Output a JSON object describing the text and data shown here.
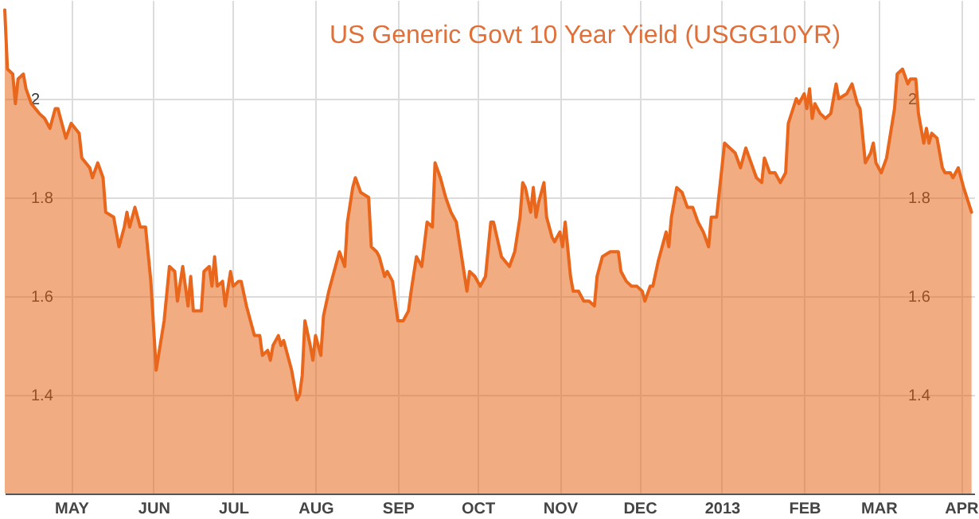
{
  "chart_data": {
    "type": "area",
    "title": "US Generic Govt 10 Year Yield (USGG10YR)",
    "x": [
      "2012-04-06",
      "2012-04-07",
      "2012-04-09",
      "2012-04-10",
      "2012-04-11",
      "2012-04-13",
      "2012-04-14",
      "2012-04-16",
      "2012-04-19",
      "2012-04-21",
      "2012-04-23",
      "2012-04-25",
      "2012-04-26",
      "2012-04-28",
      "2012-04-29",
      "2012-05-01",
      "2012-05-04",
      "2012-05-05",
      "2012-05-08",
      "2012-05-09",
      "2012-05-11",
      "2012-05-13",
      "2012-05-14",
      "2012-05-17",
      "2012-05-19",
      "2012-05-21",
      "2012-05-22",
      "2012-05-23",
      "2012-05-25",
      "2012-05-27",
      "2012-05-29",
      "2012-05-31",
      "2012-06-02",
      "2012-06-05",
      "2012-06-07",
      "2012-06-09",
      "2012-06-10",
      "2012-06-12",
      "2012-06-14",
      "2012-06-15",
      "2012-06-16",
      "2012-06-19",
      "2012-06-20",
      "2012-06-22",
      "2012-06-23",
      "2012-06-24",
      "2012-06-25",
      "2012-06-27",
      "2012-06-28",
      "2012-06-30",
      "2012-07-01",
      "2012-07-03",
      "2012-07-04",
      "2012-07-06",
      "2012-07-09",
      "2012-07-11",
      "2012-07-12",
      "2012-07-14",
      "2012-07-15",
      "2012-07-16",
      "2012-07-18",
      "2012-07-19",
      "2012-07-20",
      "2012-07-23",
      "2012-07-25",
      "2012-07-26",
      "2012-07-27",
      "2012-07-28",
      "2012-07-30",
      "2012-07-31",
      "2012-08-01",
      "2012-08-03",
      "2012-08-04",
      "2012-08-06",
      "2012-08-08",
      "2012-08-10",
      "2012-08-12",
      "2012-08-13",
      "2012-08-15",
      "2012-08-16",
      "2012-08-18",
      "2012-08-21",
      "2012-08-22",
      "2012-08-24",
      "2012-08-25",
      "2012-08-27",
      "2012-08-28",
      "2012-08-30",
      "2012-09-01",
      "2012-09-03",
      "2012-09-05",
      "2012-09-06",
      "2012-09-08",
      "2012-09-10",
      "2012-09-12",
      "2012-09-14",
      "2012-09-15",
      "2012-09-17",
      "2012-09-19",
      "2012-09-21",
      "2012-09-23",
      "2012-09-25",
      "2012-09-27",
      "2012-09-28",
      "2012-09-30",
      "2012-10-02",
      "2012-10-04",
      "2012-10-06",
      "2012-10-07",
      "2012-10-10",
      "2012-10-13",
      "2012-10-15",
      "2012-10-17",
      "2012-10-18",
      "2012-10-19",
      "2012-10-21",
      "2012-10-22",
      "2012-10-23",
      "2012-10-24",
      "2012-10-26",
      "2012-10-27",
      "2012-10-29",
      "2012-10-30",
      "2012-11-01",
      "2012-11-02",
      "2012-11-03",
      "2012-11-05",
      "2012-11-06",
      "2012-11-08",
      "2012-11-10",
      "2012-11-12",
      "2012-11-14",
      "2012-11-15",
      "2012-11-17",
      "2012-11-20",
      "2012-11-23",
      "2012-11-24",
      "2012-11-26",
      "2012-11-28",
      "2012-11-30",
      "2012-12-02",
      "2012-12-03",
      "2012-12-05",
      "2012-12-06",
      "2012-12-08",
      "2012-12-11",
      "2012-12-12",
      "2012-12-13",
      "2012-12-15",
      "2012-12-17",
      "2012-12-19",
      "2012-12-21",
      "2012-12-23",
      "2012-12-25",
      "2012-12-27",
      "2012-12-28",
      "2012-12-30",
      "2013-01-02",
      "2013-01-04",
      "2013-01-06",
      "2013-01-08",
      "2013-01-10",
      "2013-01-12",
      "2013-01-14",
      "2013-01-16",
      "2013-01-17",
      "2013-01-19",
      "2013-01-21",
      "2013-01-23",
      "2013-01-25",
      "2013-01-26",
      "2013-01-29",
      "2013-01-30",
      "2013-02-01",
      "2013-02-02",
      "2013-02-03",
      "2013-02-04",
      "2013-02-05",
      "2013-02-07",
      "2013-02-09",
      "2013-02-11",
      "2013-02-13",
      "2013-02-14",
      "2013-02-17",
      "2013-02-19",
      "2013-02-21",
      "2013-02-22",
      "2013-02-24",
      "2013-02-26",
      "2013-02-27",
      "2013-02-28",
      "2013-03-02",
      "2013-03-04",
      "2013-03-07",
      "2013-03-08",
      "2013-03-10",
      "2013-03-12",
      "2013-03-13",
      "2013-03-15",
      "2013-03-16",
      "2013-03-18",
      "2013-03-19",
      "2013-03-20",
      "2013-03-21",
      "2013-03-23",
      "2013-03-25",
      "2013-03-26",
      "2013-03-28",
      "2013-03-29",
      "2013-03-31",
      "2013-04-02",
      "2013-04-05"
    ],
    "series": [
      {
        "color": "#e8671c",
        "values": [
          2.18,
          2.06,
          2.05,
          1.99,
          2.04,
          2.05,
          2.02,
          1.99,
          1.97,
          1.96,
          1.94,
          1.98,
          1.98,
          1.94,
          1.92,
          1.95,
          1.93,
          1.88,
          1.86,
          1.84,
          1.87,
          1.84,
          1.77,
          1.76,
          1.7,
          1.74,
          1.77,
          1.74,
          1.78,
          1.74,
          1.74,
          1.63,
          1.45,
          1.55,
          1.66,
          1.65,
          1.59,
          1.66,
          1.58,
          1.64,
          1.57,
          1.57,
          1.65,
          1.66,
          1.62,
          1.68,
          1.62,
          1.63,
          1.58,
          1.65,
          1.62,
          1.63,
          1.63,
          1.58,
          1.52,
          1.52,
          1.48,
          1.49,
          1.47,
          1.5,
          1.52,
          1.5,
          1.51,
          1.45,
          1.39,
          1.4,
          1.44,
          1.55,
          1.5,
          1.47,
          1.52,
          1.48,
          1.56,
          1.61,
          1.65,
          1.69,
          1.66,
          1.75,
          1.82,
          1.84,
          1.81,
          1.8,
          1.7,
          1.69,
          1.68,
          1.64,
          1.65,
          1.63,
          1.55,
          1.55,
          1.57,
          1.61,
          1.68,
          1.66,
          1.75,
          1.74,
          1.87,
          1.84,
          1.8,
          1.77,
          1.75,
          1.68,
          1.61,
          1.65,
          1.64,
          1.62,
          1.64,
          1.75,
          1.75,
          1.68,
          1.66,
          1.69,
          1.76,
          1.83,
          1.82,
          1.77,
          1.82,
          1.76,
          1.79,
          1.83,
          1.76,
          1.72,
          1.71,
          1.73,
          1.7,
          1.75,
          1.64,
          1.61,
          1.61,
          1.59,
          1.59,
          1.58,
          1.64,
          1.68,
          1.69,
          1.69,
          1.65,
          1.63,
          1.62,
          1.62,
          1.61,
          1.59,
          1.62,
          1.62,
          1.67,
          1.73,
          1.7,
          1.76,
          1.82,
          1.81,
          1.78,
          1.78,
          1.75,
          1.73,
          1.7,
          1.76,
          1.76,
          1.91,
          1.9,
          1.89,
          1.86,
          1.9,
          1.87,
          1.84,
          1.83,
          1.88,
          1.85,
          1.85,
          1.83,
          1.85,
          1.95,
          2.0,
          1.99,
          2.01,
          1.98,
          2.02,
          1.96,
          1.99,
          1.97,
          1.96,
          1.97,
          2.03,
          2.0,
          2.01,
          2.03,
          1.99,
          1.98,
          1.87,
          1.89,
          1.91,
          1.87,
          1.85,
          1.88,
          1.98,
          2.05,
          2.06,
          2.03,
          2.04,
          2.04,
          1.97,
          1.91,
          1.94,
          1.91,
          1.93,
          1.92,
          1.86,
          1.85,
          1.85,
          1.84,
          1.86,
          1.82,
          1.77
        ]
      }
    ],
    "xlim": [
      "2012-04-06",
      "2013-04-06"
    ],
    "xticks": [
      {
        "value": "2012-05-01",
        "label": "MAY"
      },
      {
        "value": "2012-06-01",
        "label": "JUN"
      },
      {
        "value": "2012-07-01",
        "label": "JUL"
      },
      {
        "value": "2012-08-01",
        "label": "AUG"
      },
      {
        "value": "2012-09-01",
        "label": "SEP"
      },
      {
        "value": "2012-10-01",
        "label": "OCT"
      },
      {
        "value": "2012-11-01",
        "label": "NOV"
      },
      {
        "value": "2012-12-01",
        "label": "DEC"
      },
      {
        "value": "2013-01-01",
        "label": "2013"
      },
      {
        "value": "2013-02-01",
        "label": "FEB"
      },
      {
        "value": "2013-03-01",
        "label": "MAR"
      },
      {
        "value": "2013-04-01",
        "label": "APR"
      }
    ],
    "ylim": [
      1.2,
      2.2
    ],
    "yticks": [
      1.4,
      1.6,
      1.8,
      2
    ],
    "y2lim": [
      1.2,
      2.2
    ],
    "y2ticks": [
      1.4,
      1.6,
      1.8,
      2
    ],
    "grid": true
  }
}
